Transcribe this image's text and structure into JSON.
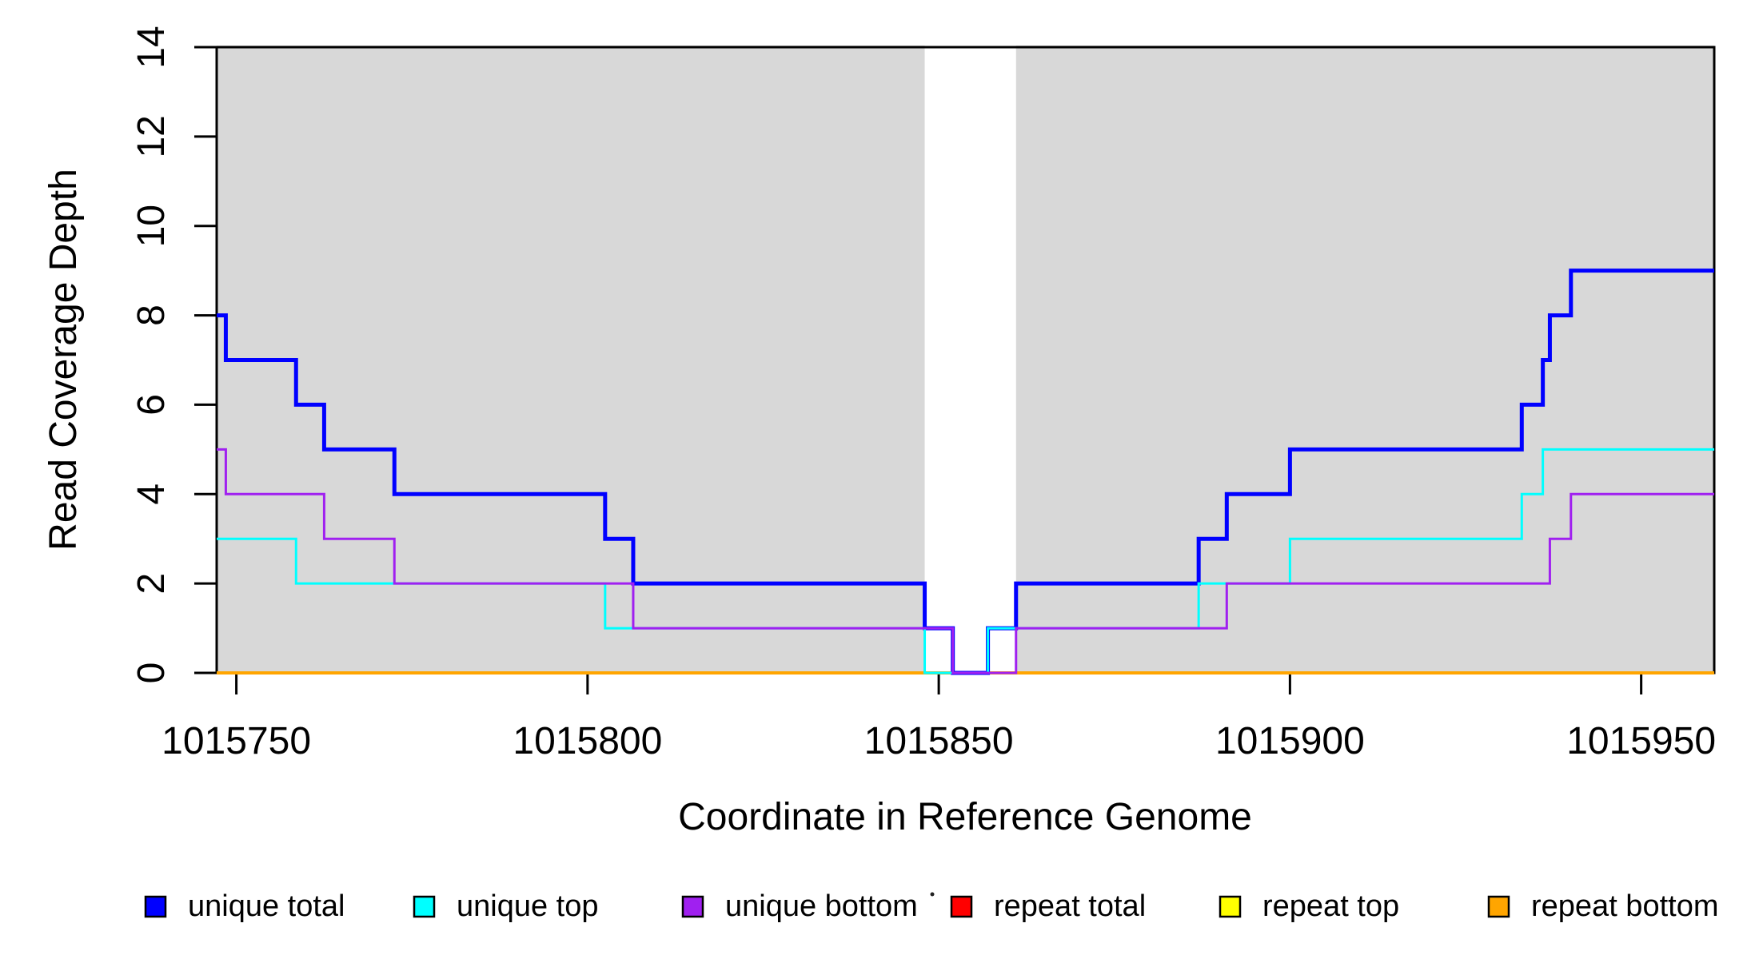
{
  "chart_data": {
    "type": "line",
    "subtype": "step-coverage-plot",
    "title": "",
    "xlabel": "Coordinate in Reference Genome",
    "ylabel": "Read Coverage Depth",
    "xlim": [
      1015747.2,
      1015960.4
    ],
    "ylim": [
      0,
      14
    ],
    "grid": false,
    "x_ticks": [
      1015750,
      1015800,
      1015850,
      1015900,
      1015950
    ],
    "x_tick_labels": [
      "1015750",
      "1015800",
      "1015850",
      "1015900",
      "1015950"
    ],
    "y_ticks": [
      0,
      2,
      4,
      6,
      8,
      10,
      12,
      14
    ],
    "y_tick_labels": [
      "0",
      "2",
      "4",
      "6",
      "8",
      "10",
      "12",
      "14"
    ],
    "shade_color": "#d8d8d8",
    "shaded_regions": [
      {
        "x0": 1015747.2,
        "x1": 1015848
      },
      {
        "x0": 1015861,
        "x1": 1015960.4
      }
    ],
    "series": [
      {
        "name": "unique total",
        "color": "#0000ff",
        "line_width": 5,
        "steps": [
          [
            1015747.2,
            8
          ],
          [
            1015748.5,
            7
          ],
          [
            1015758.5,
            6
          ],
          [
            1015762.5,
            5
          ],
          [
            1015772.5,
            4
          ],
          [
            1015802.5,
            3
          ],
          [
            1015806.5,
            2
          ],
          [
            1015848,
            1
          ],
          [
            1015852,
            0
          ],
          [
            1015857,
            1
          ],
          [
            1015861,
            2
          ],
          [
            1015887,
            3
          ],
          [
            1015891,
            4
          ],
          [
            1015900,
            5
          ],
          [
            1015933,
            6
          ],
          [
            1015936,
            7
          ],
          [
            1015937,
            8
          ],
          [
            1015940,
            9
          ]
        ]
      },
      {
        "name": "unique top",
        "color": "#00ffff",
        "line_width": 3,
        "steps": [
          [
            1015747.2,
            3
          ],
          [
            1015758.5,
            2
          ],
          [
            1015802.5,
            1
          ],
          [
            1015848,
            0
          ],
          [
            1015857,
            1
          ],
          [
            1015887,
            2
          ],
          [
            1015900,
            3
          ],
          [
            1015933,
            4
          ],
          [
            1015936,
            5
          ]
        ]
      },
      {
        "name": "unique bottom",
        "color": "#a020f0",
        "line_width": 3,
        "steps": [
          [
            1015747.2,
            5
          ],
          [
            1015748.5,
            4
          ],
          [
            1015762.5,
            3
          ],
          [
            1015772.5,
            2
          ],
          [
            1015806.5,
            1
          ],
          [
            1015852,
            0
          ],
          [
            1015861,
            1
          ],
          [
            1015891,
            2
          ],
          [
            1015937,
            3
          ],
          [
            1015940,
            4
          ]
        ]
      },
      {
        "name": "repeat total",
        "color": "#ff0000",
        "line_width": 3,
        "steps": [
          [
            1015747.2,
            0
          ]
        ]
      },
      {
        "name": "repeat top",
        "color": "#ffff00",
        "line_width": 3,
        "steps": [
          [
            1015747.2,
            0
          ]
        ]
      },
      {
        "name": "repeat bottom",
        "color": "#ffa500",
        "line_width": 4,
        "steps": [
          [
            1015747.2,
            0
          ]
        ]
      }
    ],
    "legend": [
      {
        "label": "unique total",
        "color": "#0000ff"
      },
      {
        "label": "unique top",
        "color": "#00ffff"
      },
      {
        "label": "unique bottom",
        "color": "#a020f0"
      },
      {
        "label": "repeat total",
        "color": "#ff0000"
      },
      {
        "label": "repeat top",
        "color": "#ffff00"
      },
      {
        "label": "repeat bottom",
        "color": "#ffa500"
      }
    ],
    "legend_position": "bottom"
  }
}
